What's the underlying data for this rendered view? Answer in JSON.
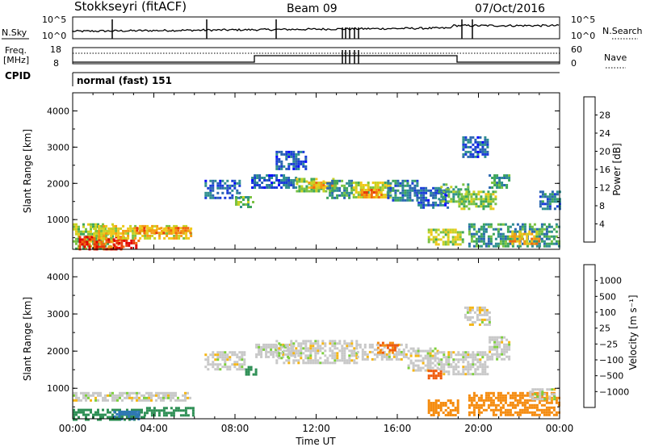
{
  "header": {
    "site": "Stokkseyri (fitACF)",
    "beam": "Beam 09",
    "date": "07/Oct/2016"
  },
  "top_panels": {
    "nsky_label": "N.Sky",
    "nsky_ticks": [
      "10^5",
      "10^0"
    ],
    "nsearch_label": "N.Search",
    "nsearch_ticks": [
      "10^5",
      "10^0"
    ],
    "freq_label": "Freq.",
    "freq_unit": "[MHz]",
    "freq_ticks": [
      "18",
      "8"
    ],
    "nave_label": "Nave",
    "nave_ticks": [
      "60",
      "0"
    ],
    "cpid_label": "CPID",
    "cpid_value": "normal (fast) 151"
  },
  "axes": {
    "ylabel": "Slant Range [km]",
    "yticks": [
      "4000",
      "3000",
      "2000",
      "1000"
    ],
    "xlabel": "Time UT",
    "xticks": [
      "00:00",
      "04:00",
      "08:00",
      "12:00",
      "16:00",
      "20:00",
      "00:00"
    ]
  },
  "colorbars": {
    "power": {
      "label": "Power [dB]",
      "ticks": [
        "28",
        "24",
        "20",
        "16",
        "12",
        "8",
        "4"
      ],
      "colors": [
        "#0000ff",
        "#1a3cd8",
        "#2b67b0",
        "#2f8f8f",
        "#3ea65a",
        "#7ac243",
        "#c8d224",
        "#f0c81a",
        "#f59a12",
        "#f06a10",
        "#e83a0c",
        "#e00000"
      ]
    },
    "velocity": {
      "label": "Velocity [m s⁻¹]",
      "ticks": [
        "1000",
        "500",
        "100",
        "25",
        "−25",
        "−100",
        "−500",
        "−1000"
      ],
      "colors": [
        "#1f3fb0",
        "#2f77b8",
        "#2e8f55",
        "#49b43b",
        "#7ccf3c",
        "#c8c8c8",
        "#c8c8c8",
        "#f5b614",
        "#f58c10",
        "#f05a0c",
        "#e00000"
      ]
    }
  },
  "chart_data": [
    {
      "type": "heatmap",
      "title": "",
      "quantity": "Power",
      "xlabel": "Time UT",
      "ylabel": "Slant Range [km]",
      "xlim_hours": [
        0,
        24
      ],
      "ylim_km": [
        180,
        4500
      ],
      "colorbar_range_db": [
        0,
        30
      ],
      "regions": [
        {
          "t": [
            0.0,
            2.0
          ],
          "r": [
            200,
            900
          ],
          "db": 14
        },
        {
          "t": [
            0.3,
            2.6
          ],
          "r": [
            200,
            550
          ],
          "db": 26
        },
        {
          "t": [
            2.0,
            3.2
          ],
          "r": [
            200,
            450
          ],
          "db": 28
        },
        {
          "t": [
            1.0,
            5.8
          ],
          "r": [
            450,
            850
          ],
          "db": 18
        },
        {
          "t": [
            3.0,
            5.8
          ],
          "r": [
            600,
            800
          ],
          "db": 22
        },
        {
          "t": [
            6.5,
            8.2
          ],
          "r": [
            1600,
            2100
          ],
          "db": 6
        },
        {
          "t": [
            8.0,
            8.9
          ],
          "r": [
            1350,
            1650
          ],
          "db": 12
        },
        {
          "t": [
            8.8,
            11.0
          ],
          "r": [
            1850,
            2250
          ],
          "db": 6
        },
        {
          "t": [
            10.0,
            11.5
          ],
          "r": [
            2400,
            2900
          ],
          "db": 6
        },
        {
          "t": [
            11.0,
            13.0
          ],
          "r": [
            1750,
            2150
          ],
          "db": 14
        },
        {
          "t": [
            11.6,
            13.0
          ],
          "r": [
            1850,
            2050
          ],
          "db": 20
        },
        {
          "t": [
            12.5,
            13.8
          ],
          "r": [
            1600,
            2100
          ],
          "db": 10
        },
        {
          "t": [
            13.8,
            15.6
          ],
          "r": [
            1600,
            2050
          ],
          "db": 16
        },
        {
          "t": [
            14.2,
            15.2
          ],
          "r": [
            1600,
            1850
          ],
          "db": 22
        },
        {
          "t": [
            15.5,
            17.0
          ],
          "r": [
            1500,
            2100
          ],
          "db": 8
        },
        {
          "t": [
            17.0,
            18.5
          ],
          "r": [
            1300,
            1900
          ],
          "db": 6
        },
        {
          "t": [
            18.0,
            19.5
          ],
          "r": [
            1500,
            2000
          ],
          "db": 12
        },
        {
          "t": [
            19.0,
            20.8
          ],
          "r": [
            1300,
            1800
          ],
          "db": 14
        },
        {
          "t": [
            20.5,
            21.5
          ],
          "r": [
            1850,
            2250
          ],
          "db": 10
        },
        {
          "t": [
            17.5,
            19.2
          ],
          "r": [
            300,
            750
          ],
          "db": 16
        },
        {
          "t": [
            19.5,
            24.0
          ],
          "r": [
            250,
            900
          ],
          "db": 10
        },
        {
          "t": [
            21.5,
            23.0
          ],
          "r": [
            350,
            700
          ],
          "db": 20
        },
        {
          "t": [
            23.0,
            24.0
          ],
          "r": [
            1300,
            1800
          ],
          "db": 8
        },
        {
          "t": [
            19.2,
            20.5
          ],
          "r": [
            2700,
            3300
          ],
          "db": 6
        }
      ]
    },
    {
      "type": "heatmap",
      "title": "",
      "quantity": "Velocity",
      "xlabel": "Time UT",
      "ylabel": "Slant Range [km]",
      "xlim_hours": [
        0,
        24
      ],
      "ylim_km": [
        180,
        4500
      ],
      "regions": [
        {
          "t": [
            0.0,
            5.8
          ],
          "r": [
            650,
            900
          ],
          "v": 0
        },
        {
          "t": [
            0.0,
            3.5
          ],
          "r": [
            180,
            450
          ],
          "v": 150
        },
        {
          "t": [
            2.0,
            3.2
          ],
          "r": [
            180,
            400
          ],
          "v": 400
        },
        {
          "t": [
            3.5,
            6.0
          ],
          "r": [
            250,
            500
          ],
          "v": 200
        },
        {
          "t": [
            6.5,
            8.5
          ],
          "r": [
            1500,
            2000
          ],
          "v": 0
        },
        {
          "t": [
            8.5,
            9.0
          ],
          "r": [
            1350,
            1600
          ],
          "v": 200
        },
        {
          "t": [
            9.0,
            11.0
          ],
          "r": [
            1850,
            2200
          ],
          "v": 0
        },
        {
          "t": [
            10.0,
            14.0
          ],
          "r": [
            1700,
            2300
          ],
          "v": 0
        },
        {
          "t": [
            14.0,
            16.5
          ],
          "r": [
            1800,
            2200
          ],
          "v": 0
        },
        {
          "t": [
            15.0,
            16.0
          ],
          "r": [
            1950,
            2250
          ],
          "v": -300
        },
        {
          "t": [
            16.5,
            18.0
          ],
          "r": [
            1500,
            2100
          ],
          "v": 0
        },
        {
          "t": [
            17.5,
            18.2
          ],
          "r": [
            1250,
            1500
          ],
          "v": -700
        },
        {
          "t": [
            18.0,
            20.5
          ],
          "r": [
            1400,
            2000
          ],
          "v": 0
        },
        {
          "t": [
            20.5,
            21.5
          ],
          "r": [
            1800,
            2400
          ],
          "v": 0
        },
        {
          "t": [
            17.5,
            19.0
          ],
          "r": [
            250,
            700
          ],
          "v": -200
        },
        {
          "t": [
            19.5,
            24.0
          ],
          "r": [
            300,
            900
          ],
          "v": -150
        },
        {
          "t": [
            22.5,
            23.8
          ],
          "r": [
            700,
            1000
          ],
          "v": 0
        },
        {
          "t": [
            19.3,
            20.5
          ],
          "r": [
            2700,
            3200
          ],
          "v": 0
        }
      ]
    }
  ]
}
